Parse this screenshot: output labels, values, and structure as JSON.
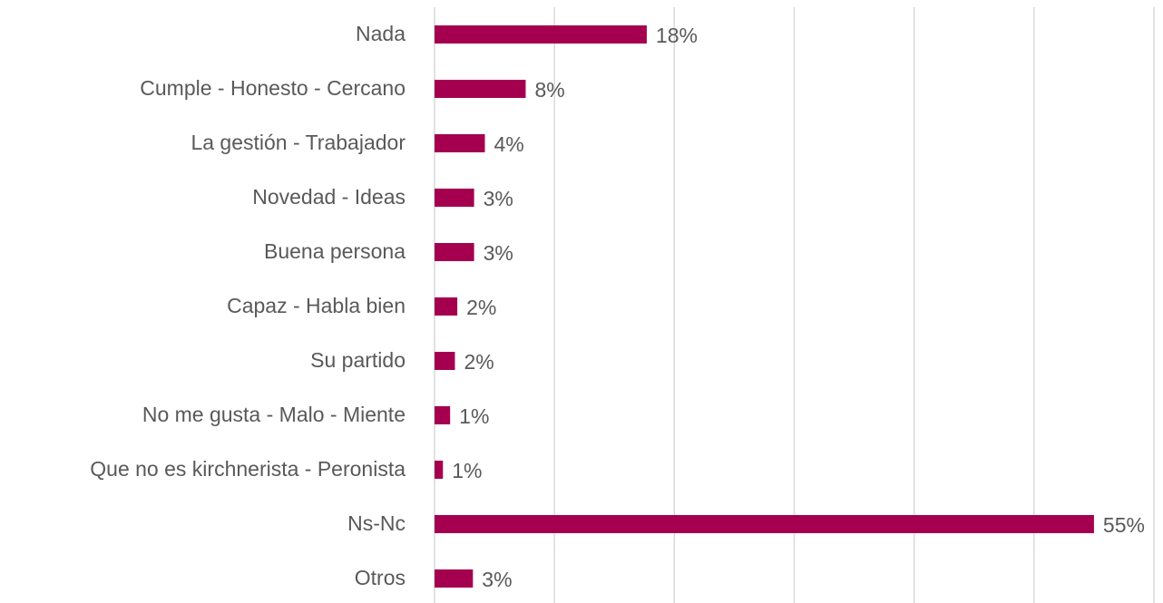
{
  "chart_data": {
    "type": "bar",
    "orientation": "horizontal",
    "categories": [
      "Nada",
      "Cumple - Honesto - Cercano",
      "La gestión - Trabajador",
      "Novedad - Ideas",
      "Buena persona",
      "Capaz - Habla bien",
      "Su partido",
      "No me gusta - Malo - Miente",
      "Que no es kirchnerista - Peronista",
      "Ns-Nc",
      "Otros"
    ],
    "values": [
      17.7,
      7.6,
      4.2,
      3.3,
      3.3,
      1.9,
      1.7,
      1.3,
      0.7,
      55,
      3.2
    ],
    "value_labels": [
      "18%",
      "8%",
      "4%",
      "3%",
      "3%",
      "2%",
      "2%",
      "1%",
      "1%",
      "55%",
      "3%"
    ],
    "color": "#a50050",
    "xlim": [
      0,
      60
    ],
    "xticks": [
      0,
      10,
      20,
      30,
      40,
      50,
      60
    ],
    "grid": true
  }
}
